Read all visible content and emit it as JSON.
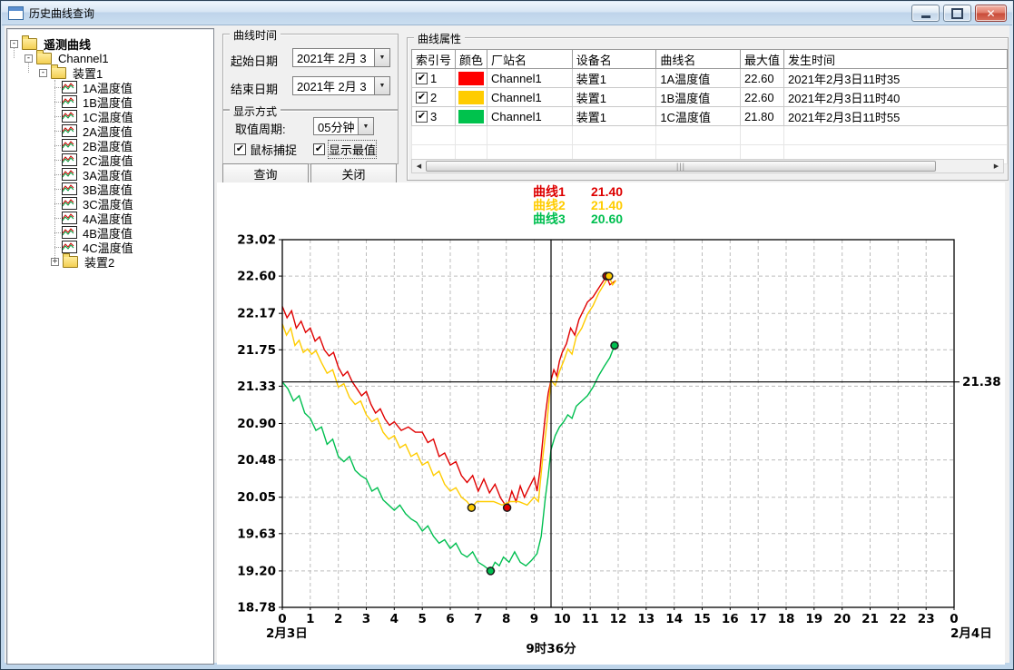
{
  "window": {
    "title": "历史曲线查询"
  },
  "icons": {
    "dropdown_arrow": "▼",
    "check_mark": "✔",
    "scroll_left_arrow": "◀",
    "scroll_right_arrow": "▶",
    "expander_collapse": "-",
    "expander_expand": "+",
    "window_close": "✕",
    "scroll_grip": "|||"
  },
  "tree": {
    "root": {
      "label": "遥测曲线"
    },
    "channel": {
      "label": "Channel1"
    },
    "device1": {
      "label": "装置1"
    },
    "leaves": [
      "1A温度值",
      "1B温度值",
      "1C温度值",
      "2A温度值",
      "2B温度值",
      "2C温度值",
      "3A温度值",
      "3B温度值",
      "3C温度值",
      "4A温度值",
      "4B温度值",
      "4C温度值"
    ],
    "device2": {
      "label": "装置2"
    }
  },
  "time_group": {
    "title": "曲线时间",
    "start_label": "起始日期",
    "start_value": "2021年 2月 3",
    "end_label": "结束日期",
    "end_value": "2021年 2月 3"
  },
  "display_group": {
    "title": "显示方式",
    "period_label": "取值周期:",
    "period_value": "05分钟",
    "checkbox1": "鼠标捕捉",
    "checkbox1_checked": true,
    "checkbox2": "显示最值",
    "checkbox2_checked": true
  },
  "buttons": {
    "query": "查询",
    "close": "关闭"
  },
  "properties_group": {
    "title": "曲线属性",
    "columns": [
      "索引号",
      "颜色",
      "厂站名",
      "设备名",
      "曲线名",
      "最大值",
      "发生时间"
    ],
    "rows": [
      {
        "checked": true,
        "index": "1",
        "color": "#ff0000",
        "station": "Channel1",
        "device": "装置1",
        "curve": "1A温度值",
        "max": "22.60",
        "time": "2021年2月3日11时35"
      },
      {
        "checked": true,
        "index": "2",
        "color": "#ffcc00",
        "station": "Channel1",
        "device": "装置1",
        "curve": "1B温度值",
        "max": "22.60",
        "time": "2021年2月3日11时40"
      },
      {
        "checked": true,
        "index": "3",
        "color": "#00c24d",
        "station": "Channel1",
        "device": "装置1",
        "curve": "1C温度值",
        "max": "21.80",
        "time": "2021年2月3日11时55"
      }
    ]
  },
  "legend": [
    {
      "name": "曲线1",
      "value": "21.40",
      "color": "#dd0000"
    },
    {
      "name": "曲线2",
      "value": "21.40",
      "color": "#ffcc00"
    },
    {
      "name": "曲线3",
      "value": "20.60",
      "color": "#00bf50"
    }
  ],
  "chart_data": {
    "type": "line",
    "xlim": [
      0,
      24
    ],
    "ylim": [
      18.78,
      23.02
    ],
    "y_ticks": [
      "23.02",
      "22.60",
      "22.17",
      "21.75",
      "21.33",
      "20.90",
      "20.48",
      "20.05",
      "19.63",
      "19.20",
      "18.78"
    ],
    "x_ticks": [
      "0",
      "1",
      "2",
      "3",
      "4",
      "5",
      "6",
      "7",
      "8",
      "9",
      "10",
      "11",
      "12",
      "13",
      "14",
      "15",
      "16",
      "17",
      "18",
      "19",
      "20",
      "21",
      "22",
      "23",
      "0"
    ],
    "x_start_date": "2月3日",
    "x_end_date": "2月4日",
    "grid": true,
    "crosshair": {
      "time": 9.6,
      "time_label": "9时36分",
      "value": 21.38,
      "value_label": "21.38"
    },
    "series": [
      {
        "name": "曲线1",
        "color": "#e00000",
        "min_marker": [
          8.03,
          19.93
        ],
        "max_marker": [
          11.58,
          22.6
        ],
        "points": [
          [
            0,
            22.25
          ],
          [
            0.17,
            22.12
          ],
          [
            0.33,
            22.2
          ],
          [
            0.5,
            22.0
          ],
          [
            0.67,
            22.08
          ],
          [
            0.83,
            21.95
          ],
          [
            1.0,
            22.0
          ],
          [
            1.17,
            21.85
          ],
          [
            1.33,
            21.9
          ],
          [
            1.5,
            21.75
          ],
          [
            1.67,
            21.68
          ],
          [
            1.83,
            21.72
          ],
          [
            2.0,
            21.55
          ],
          [
            2.17,
            21.45
          ],
          [
            2.33,
            21.5
          ],
          [
            2.5,
            21.38
          ],
          [
            2.67,
            21.3
          ],
          [
            2.83,
            21.22
          ],
          [
            3.0,
            21.27
          ],
          [
            3.17,
            21.12
          ],
          [
            3.33,
            21.02
          ],
          [
            3.5,
            21.07
          ],
          [
            3.67,
            20.95
          ],
          [
            3.83,
            20.88
          ],
          [
            4.0,
            20.92
          ],
          [
            4.25,
            20.82
          ],
          [
            4.5,
            20.86
          ],
          [
            4.75,
            20.8
          ],
          [
            5.0,
            20.8
          ],
          [
            5.2,
            20.68
          ],
          [
            5.4,
            20.72
          ],
          [
            5.6,
            20.52
          ],
          [
            5.8,
            20.56
          ],
          [
            6.0,
            20.42
          ],
          [
            6.2,
            20.46
          ],
          [
            6.4,
            20.3
          ],
          [
            6.6,
            20.22
          ],
          [
            6.8,
            20.3
          ],
          [
            7.0,
            20.12
          ],
          [
            7.2,
            20.26
          ],
          [
            7.4,
            20.1
          ],
          [
            7.6,
            20.2
          ],
          [
            7.8,
            20.04
          ],
          [
            8.03,
            19.93
          ],
          [
            8.2,
            20.12
          ],
          [
            8.35,
            20.0
          ],
          [
            8.5,
            20.18
          ],
          [
            8.65,
            20.05
          ],
          [
            8.8,
            20.15
          ],
          [
            9.0,
            20.28
          ],
          [
            9.1,
            20.12
          ],
          [
            9.2,
            20.35
          ],
          [
            9.3,
            20.7
          ],
          [
            9.4,
            21.0
          ],
          [
            9.5,
            21.25
          ],
          [
            9.6,
            21.4
          ],
          [
            9.7,
            21.52
          ],
          [
            9.8,
            21.45
          ],
          [
            9.9,
            21.62
          ],
          [
            10.0,
            21.72
          ],
          [
            10.15,
            21.82
          ],
          [
            10.3,
            22.0
          ],
          [
            10.45,
            21.92
          ],
          [
            10.6,
            22.1
          ],
          [
            10.75,
            22.2
          ],
          [
            10.9,
            22.3
          ],
          [
            11.1,
            22.36
          ],
          [
            11.3,
            22.46
          ],
          [
            11.58,
            22.6
          ],
          [
            11.7,
            22.5
          ],
          [
            11.92,
            22.55
          ]
        ]
      },
      {
        "name": "曲线2",
        "color": "#ffcc00",
        "min_marker": [
          6.76,
          19.93
        ],
        "max_marker": [
          11.67,
          22.6
        ],
        "points": [
          [
            0,
            22.05
          ],
          [
            0.15,
            21.92
          ],
          [
            0.3,
            22.0
          ],
          [
            0.45,
            21.8
          ],
          [
            0.6,
            21.86
          ],
          [
            0.75,
            21.72
          ],
          [
            0.9,
            21.76
          ],
          [
            1.05,
            21.7
          ],
          [
            1.2,
            21.74
          ],
          [
            1.4,
            21.6
          ],
          [
            1.6,
            21.48
          ],
          [
            1.8,
            21.52
          ],
          [
            2.0,
            21.32
          ],
          [
            2.2,
            21.36
          ],
          [
            2.4,
            21.2
          ],
          [
            2.6,
            21.12
          ],
          [
            2.8,
            21.16
          ],
          [
            3.0,
            21.0
          ],
          [
            3.2,
            20.92
          ],
          [
            3.4,
            20.96
          ],
          [
            3.6,
            20.8
          ],
          [
            3.8,
            20.72
          ],
          [
            4.0,
            20.76
          ],
          [
            4.2,
            20.62
          ],
          [
            4.4,
            20.66
          ],
          [
            4.6,
            20.52
          ],
          [
            4.8,
            20.56
          ],
          [
            5.0,
            20.42
          ],
          [
            5.2,
            20.46
          ],
          [
            5.4,
            20.3
          ],
          [
            5.6,
            20.35
          ],
          [
            5.8,
            20.2
          ],
          [
            6.0,
            20.12
          ],
          [
            6.2,
            20.16
          ],
          [
            6.4,
            20.05
          ],
          [
            6.6,
            20.0
          ],
          [
            6.76,
            19.93
          ],
          [
            6.95,
            20.0
          ],
          [
            7.25,
            20.0
          ],
          [
            7.55,
            20.0
          ],
          [
            7.85,
            19.96
          ],
          [
            8.15,
            20.0
          ],
          [
            8.45,
            20.0
          ],
          [
            8.75,
            19.96
          ],
          [
            9.0,
            20.05
          ],
          [
            9.15,
            20.0
          ],
          [
            9.3,
            20.5
          ],
          [
            9.45,
            20.9
          ],
          [
            9.6,
            21.4
          ],
          [
            9.75,
            21.34
          ],
          [
            9.9,
            21.5
          ],
          [
            10.05,
            21.62
          ],
          [
            10.2,
            21.76
          ],
          [
            10.35,
            21.7
          ],
          [
            10.5,
            21.9
          ],
          [
            10.7,
            22.0
          ],
          [
            10.9,
            22.16
          ],
          [
            11.1,
            22.26
          ],
          [
            11.3,
            22.4
          ],
          [
            11.67,
            22.6
          ],
          [
            11.8,
            22.5
          ],
          [
            11.92,
            22.55
          ]
        ]
      },
      {
        "name": "曲线3",
        "color": "#00bf50",
        "min_marker": [
          7.44,
          19.2
        ],
        "max_marker": [
          11.87,
          21.8
        ],
        "points": [
          [
            0,
            21.38
          ],
          [
            0.2,
            21.3
          ],
          [
            0.4,
            21.16
          ],
          [
            0.6,
            21.22
          ],
          [
            0.8,
            21.02
          ],
          [
            1.0,
            20.96
          ],
          [
            1.2,
            20.82
          ],
          [
            1.4,
            20.86
          ],
          [
            1.6,
            20.66
          ],
          [
            1.8,
            20.72
          ],
          [
            2.0,
            20.52
          ],
          [
            2.2,
            20.46
          ],
          [
            2.4,
            20.52
          ],
          [
            2.6,
            20.36
          ],
          [
            2.8,
            20.3
          ],
          [
            3.0,
            20.26
          ],
          [
            3.2,
            20.12
          ],
          [
            3.4,
            20.16
          ],
          [
            3.6,
            20.02
          ],
          [
            3.8,
            19.96
          ],
          [
            4.0,
            19.9
          ],
          [
            4.2,
            19.96
          ],
          [
            4.4,
            19.86
          ],
          [
            4.6,
            19.8
          ],
          [
            4.8,
            19.76
          ],
          [
            5.0,
            19.66
          ],
          [
            5.2,
            19.72
          ],
          [
            5.4,
            19.6
          ],
          [
            5.6,
            19.52
          ],
          [
            5.8,
            19.56
          ],
          [
            6.0,
            19.46
          ],
          [
            6.2,
            19.52
          ],
          [
            6.4,
            19.4
          ],
          [
            6.6,
            19.36
          ],
          [
            6.8,
            19.42
          ],
          [
            7.0,
            19.3
          ],
          [
            7.2,
            19.26
          ],
          [
            7.44,
            19.2
          ],
          [
            7.6,
            19.3
          ],
          [
            7.75,
            19.26
          ],
          [
            7.9,
            19.36
          ],
          [
            8.1,
            19.3
          ],
          [
            8.3,
            19.42
          ],
          [
            8.5,
            19.3
          ],
          [
            8.7,
            19.26
          ],
          [
            8.9,
            19.32
          ],
          [
            9.1,
            19.4
          ],
          [
            9.25,
            19.6
          ],
          [
            9.4,
            20.05
          ],
          [
            9.5,
            20.3
          ],
          [
            9.6,
            20.6
          ],
          [
            9.75,
            20.76
          ],
          [
            9.9,
            20.86
          ],
          [
            10.05,
            20.92
          ],
          [
            10.2,
            21.0
          ],
          [
            10.35,
            20.96
          ],
          [
            10.5,
            21.1
          ],
          [
            10.7,
            21.16
          ],
          [
            10.9,
            21.22
          ],
          [
            11.1,
            21.32
          ],
          [
            11.3,
            21.45
          ],
          [
            11.5,
            21.56
          ],
          [
            11.7,
            21.66
          ],
          [
            11.87,
            21.8
          ]
        ]
      }
    ]
  }
}
